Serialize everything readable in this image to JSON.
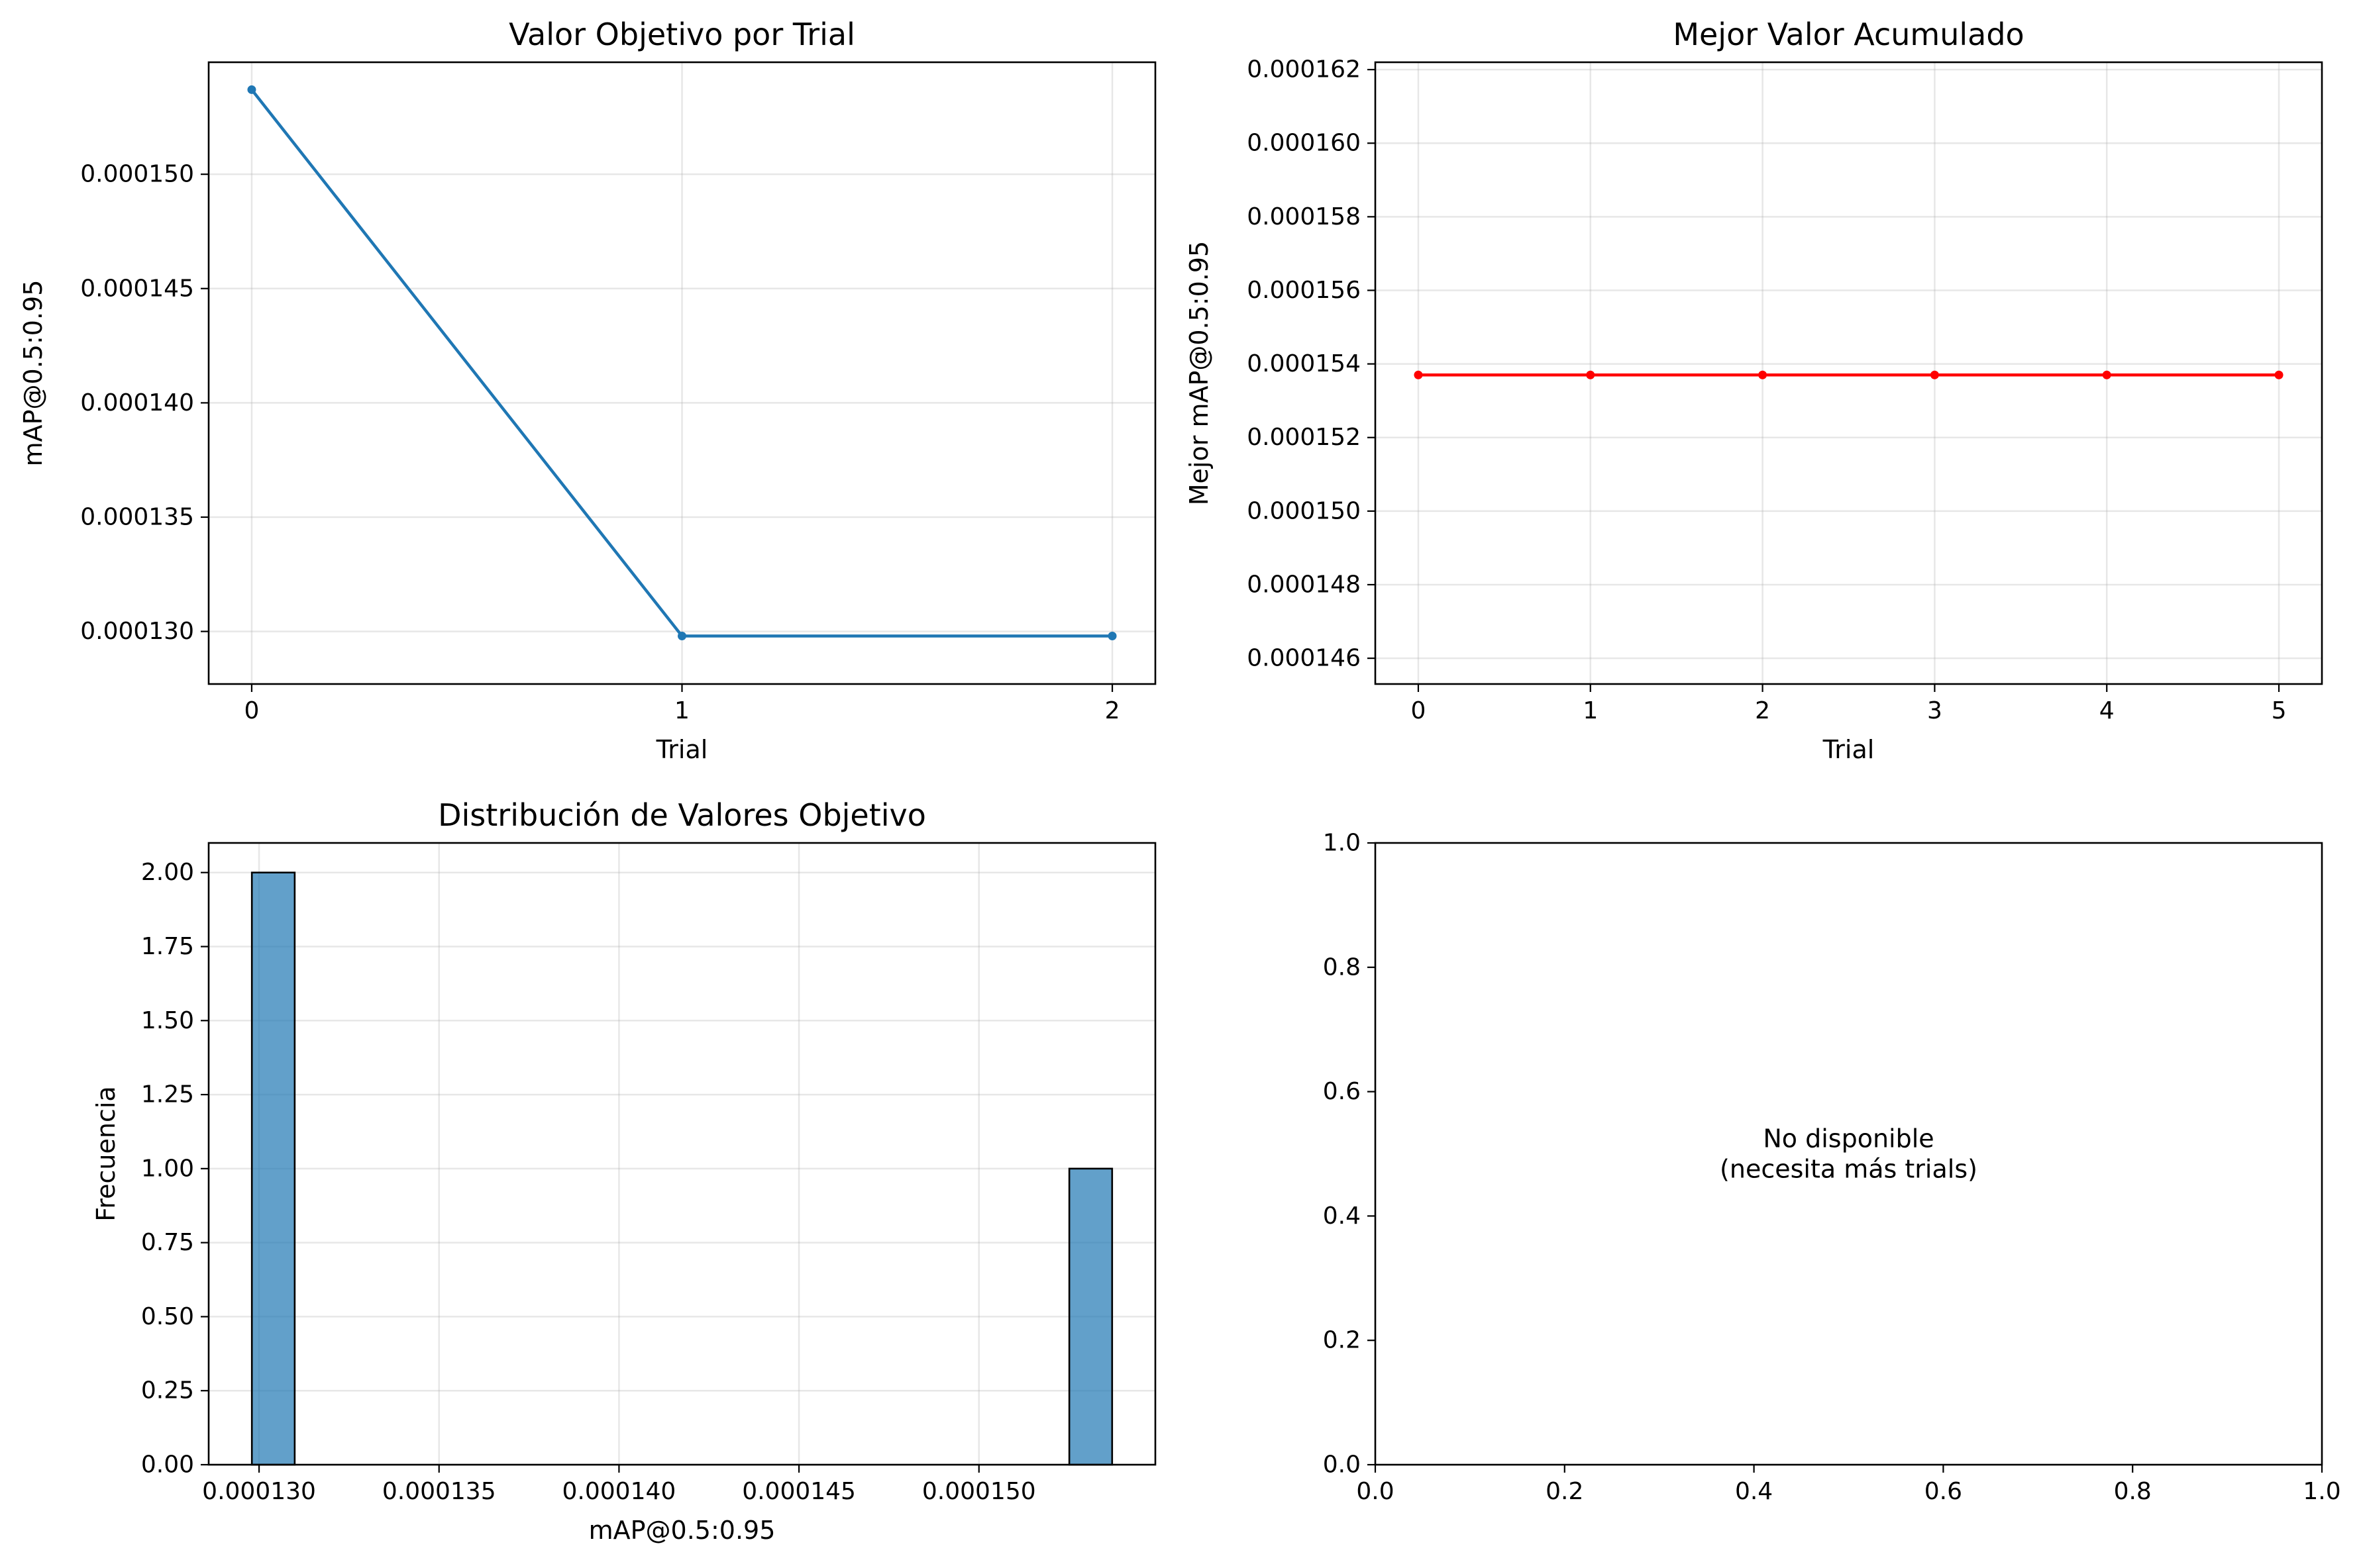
{
  "chart_data": [
    {
      "id": "objective",
      "type": "line",
      "title": "Valor Objetivo por Trial",
      "xlabel": "Trial",
      "ylabel": "mAP@0.5:0.95",
      "x": [
        0,
        1,
        2
      ],
      "y": [
        0.0001537,
        0.0001298,
        0.0001298
      ],
      "xlim": [
        -0.1,
        2.1
      ],
      "ylim": [
        0.0001277,
        0.0001549
      ],
      "xticks": [
        0,
        1,
        2
      ],
      "xtick_labels": [
        "0",
        "1",
        "2"
      ],
      "yticks": [
        0.00013,
        0.000135,
        0.00014,
        0.000145,
        0.00015
      ],
      "ytick_labels": [
        "0.000130",
        "0.000135",
        "0.000140",
        "0.000145",
        "0.000150"
      ],
      "color": "#1f77b4",
      "grid": true
    },
    {
      "id": "best",
      "type": "line",
      "title": "Mejor Valor Acumulado",
      "xlabel": "Trial",
      "ylabel": "Mejor mAP@0.5:0.95",
      "x": [
        0,
        1,
        2,
        3,
        4,
        5
      ],
      "y": [
        0.0001537,
        0.0001537,
        0.0001537,
        0.0001537,
        0.0001537,
        0.0001537
      ],
      "xlim": [
        -0.25,
        5.25
      ],
      "ylim": [
        0.0001453,
        0.0001622
      ],
      "xticks": [
        0,
        1,
        2,
        3,
        4,
        5
      ],
      "xtick_labels": [
        "0",
        "1",
        "2",
        "3",
        "4",
        "5"
      ],
      "yticks": [
        0.000146,
        0.000148,
        0.00015,
        0.000152,
        0.000154,
        0.000156,
        0.000158,
        0.00016,
        0.000162
      ],
      "ytick_labels": [
        "0.000146",
        "0.000148",
        "0.000150",
        "0.000152",
        "0.000154",
        "0.000156",
        "0.000158",
        "0.000160",
        "0.000162"
      ],
      "color": "#ff0000",
      "grid": true
    },
    {
      "id": "hist",
      "type": "bar",
      "title": "Distribución de Valores Objetivo",
      "xlabel": "mAP@0.5:0.95",
      "ylabel": "Frecuencia",
      "bins": [
        {
          "start": 0.0001298,
          "end": 0.00013099,
          "count": 2
        },
        {
          "start": 0.00015251,
          "end": 0.0001537,
          "count": 1
        }
      ],
      "xlim": [
        0.0001286,
        0.0001549
      ],
      "ylim": [
        0,
        2.1
      ],
      "xticks": [
        0.00013,
        0.000135,
        0.00014,
        0.000145,
        0.00015
      ],
      "xtick_labels": [
        "0.000130",
        "0.000135",
        "0.000140",
        "0.000145",
        "0.000150"
      ],
      "yticks": [
        0,
        0.25,
        0.5,
        0.75,
        1,
        1.25,
        1.5,
        1.75,
        2
      ],
      "ytick_labels": [
        "0.00",
        "0.25",
        "0.50",
        "0.75",
        "1.00",
        "1.25",
        "1.50",
        "1.75",
        "2.00"
      ],
      "color": "#1f77b4",
      "grid": true
    },
    {
      "id": "empty",
      "type": "scatter",
      "title": "",
      "xlabel": "",
      "ylabel": "",
      "xlim": [
        0,
        1
      ],
      "ylim": [
        0,
        1
      ],
      "xticks": [
        0,
        0.2,
        0.4,
        0.6,
        0.8,
        1
      ],
      "xtick_labels": [
        "0.0",
        "0.2",
        "0.4",
        "0.6",
        "0.8",
        "1.0"
      ],
      "yticks": [
        0,
        0.2,
        0.4,
        0.6,
        0.8,
        1
      ],
      "ytick_labels": [
        "0.0",
        "0.2",
        "0.4",
        "0.6",
        "0.8",
        "1.0"
      ],
      "annotation": [
        "No disponible",
        "(necesita más trials)"
      ],
      "grid": false
    }
  ]
}
